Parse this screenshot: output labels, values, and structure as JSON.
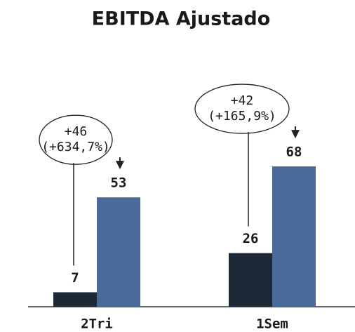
{
  "chart_data": {
    "type": "bar",
    "title": "EBITDA Ajustado",
    "categories": [
      "2Tri",
      "1Sem"
    ],
    "series": [
      {
        "color": "#1b2a36",
        "values": [
          7,
          26
        ]
      },
      {
        "color": "#4a6a9a",
        "values": [
          53,
          68
        ]
      }
    ],
    "ylim": [
      0,
      100
    ],
    "annotations": [
      {
        "lines": [
          "+46",
          "(+634,7%)"
        ]
      },
      {
        "lines": [
          "+42",
          "(+165,9%)"
        ]
      }
    ]
  }
}
